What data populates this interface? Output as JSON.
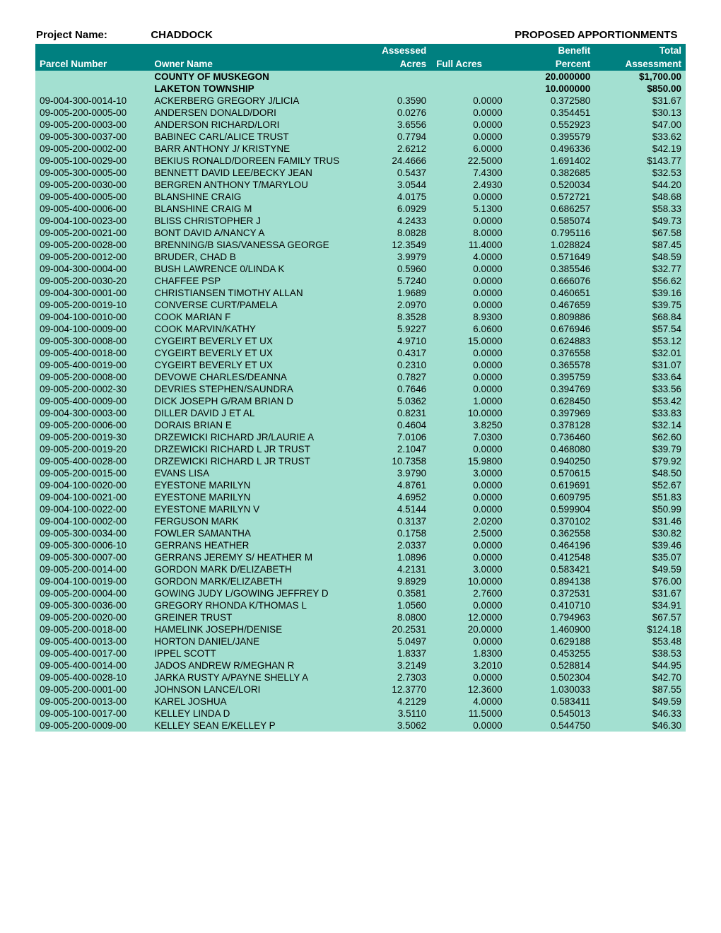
{
  "title": {
    "project_label": "Project Name:",
    "project_name": "CHADDOCK",
    "section_title": "PROPOSED APPORTIONMENTS"
  },
  "header1": {
    "assessed": "Assessed",
    "benefit": "Benefit",
    "total": "Total"
  },
  "header2": {
    "parcel": "Parcel Number",
    "owner": "Owner Name",
    "acres": "Acres",
    "full": "Full Acres",
    "percent": "Percent",
    "assessment": "Assessment"
  },
  "subheads": [
    {
      "name": "COUNTY OF MUSKEGON",
      "pct": "20.000000",
      "amt": "$1,700.00"
    },
    {
      "name": "LAKETON TOWNSHIP",
      "pct": "10.000000",
      "amt": "$850.00"
    }
  ],
  "rows": [
    {
      "p": "09-004-300-0014-10",
      "o": "ACKERBERG GREGORY J/LICIA",
      "a": "0.3590",
      "f": "0.0000",
      "pc": "0.372580",
      "am": "$31.67"
    },
    {
      "p": "09-005-200-0005-00",
      "o": "ANDERSEN DONALD/DORI",
      "a": "0.0276",
      "f": "0.0000",
      "pc": "0.354451",
      "am": "$30.13"
    },
    {
      "p": "09-005-200-0003-00",
      "o": "ANDERSON RICHARD/LORI",
      "a": "3.6556",
      "f": "0.0000",
      "pc": "0.552923",
      "am": "$47.00"
    },
    {
      "p": "09-005-300-0037-00",
      "o": "BABINEC CARL/ALICE TRUST",
      "a": "0.7794",
      "f": "0.0000",
      "pc": "0.395579",
      "am": "$33.62"
    },
    {
      "p": "09-005-200-0002-00",
      "o": "BARR ANTHONY J/ KRISTYNE",
      "a": "2.6212",
      "f": "6.0000",
      "pc": "0.496336",
      "am": "$42.19"
    },
    {
      "p": "09-005-100-0029-00",
      "o": "BEKIUS RONALD/DOREEN FAMILY TRUS",
      "a": "24.4666",
      "f": "22.5000",
      "pc": "1.691402",
      "am": "$143.77"
    },
    {
      "p": "09-005-300-0005-00",
      "o": "BENNETT DAVID LEE/BECKY JEAN",
      "a": "0.5437",
      "f": "7.4300",
      "pc": "0.382685",
      "am": "$32.53"
    },
    {
      "p": "09-005-200-0030-00",
      "o": "BERGREN ANTHONY T/MARYLOU",
      "a": "3.0544",
      "f": "2.4930",
      "pc": "0.520034",
      "am": "$44.20"
    },
    {
      "p": "09-005-400-0005-00",
      "o": "BLANSHINE CRAIG",
      "a": "4.0175",
      "f": "0.0000",
      "pc": "0.572721",
      "am": "$48.68"
    },
    {
      "p": "09-005-400-0006-00",
      "o": "BLANSHINE CRAIG M",
      "a": "6.0929",
      "f": "5.1300",
      "pc": "0.686257",
      "am": "$58.33"
    },
    {
      "p": "09-004-100-0023-00",
      "o": "BLISS CHRISTOPHER J",
      "a": "4.2433",
      "f": "0.0000",
      "pc": "0.585074",
      "am": "$49.73"
    },
    {
      "p": "09-005-200-0021-00",
      "o": "BONT DAVID A/NANCY A",
      "a": "8.0828",
      "f": "8.0000",
      "pc": "0.795116",
      "am": "$67.58"
    },
    {
      "p": "09-005-200-0028-00",
      "o": "BRENNING/B SIAS/VANESSA GEORGE",
      "a": "12.3549",
      "f": "11.4000",
      "pc": "1.028824",
      "am": "$87.45"
    },
    {
      "p": "09-005-200-0012-00",
      "o": "BRUDER, CHAD B",
      "a": "3.9979",
      "f": "4.0000",
      "pc": "0.571649",
      "am": "$48.59"
    },
    {
      "p": "09-004-300-0004-00",
      "o": "BUSH LAWRENCE 0/LINDA K",
      "a": "0.5960",
      "f": "0.0000",
      "pc": "0.385546",
      "am": "$32.77"
    },
    {
      "p": "09-005-200-0030-20",
      "o": "CHAFFEE PSP",
      "a": "5.7240",
      "f": "0.0000",
      "pc": "0.666076",
      "am": "$56.62"
    },
    {
      "p": "09-004-300-0001-00",
      "o": "CHRISTIANSEN TIMOTHY ALLAN",
      "a": "1.9689",
      "f": "0.0000",
      "pc": "0.460651",
      "am": "$39.16"
    },
    {
      "p": "09-005-200-0019-10",
      "o": "CONVERSE CURT/PAMELA",
      "a": "2.0970",
      "f": "0.0000",
      "pc": "0.467659",
      "am": "$39.75"
    },
    {
      "p": "09-004-100-0010-00",
      "o": "COOK MARIAN F",
      "a": "8.3528",
      "f": "8.9300",
      "pc": "0.809886",
      "am": "$68.84"
    },
    {
      "p": "09-004-100-0009-00",
      "o": "COOK MARVIN/KATHY",
      "a": "5.9227",
      "f": "6.0600",
      "pc": "0.676946",
      "am": "$57.54"
    },
    {
      "p": "09-005-300-0008-00",
      "o": "CYGEIRT BEVERLY ET UX",
      "a": "4.9710",
      "f": "15.0000",
      "pc": "0.624883",
      "am": "$53.12"
    },
    {
      "p": "09-005-400-0018-00",
      "o": "CYGEIRT BEVERLY ET UX",
      "a": "0.4317",
      "f": "0.0000",
      "pc": "0.376558",
      "am": "$32.01"
    },
    {
      "p": "09-005-400-0019-00",
      "o": "CYGEIRT BEVERLY ET UX",
      "a": "0.2310",
      "f": "0.0000",
      "pc": "0.365578",
      "am": "$31.07"
    },
    {
      "p": "09-005-200-0008-00",
      "o": "DEVOWE CHARLES/DEANNA",
      "a": "0.7827",
      "f": "0.0000",
      "pc": "0.395759",
      "am": "$33.64"
    },
    {
      "p": "09-005-200-0002-30",
      "o": "DEVRIES STEPHEN/SAUNDRA",
      "a": "0.7646",
      "f": "0.0000",
      "pc": "0.394769",
      "am": "$33.56"
    },
    {
      "p": "09-005-400-0009-00",
      "o": "DICK JOSEPH G/RAM BRIAN D",
      "a": "5.0362",
      "f": "1.0000",
      "pc": "0.628450",
      "am": "$53.42"
    },
    {
      "p": "09-004-300-0003-00",
      "o": "DILLER DAVID J ET AL",
      "a": "0.8231",
      "f": "10.0000",
      "pc": "0.397969",
      "am": "$33.83"
    },
    {
      "p": "09-005-200-0006-00",
      "o": "DORAIS BRIAN E",
      "a": "0.4604",
      "f": "3.8250",
      "pc": "0.378128",
      "am": "$32.14"
    },
    {
      "p": "09-005-200-0019-30",
      "o": "DRZEWICKI RICHARD JR/LAURIE A",
      "a": "7.0106",
      "f": "7.0300",
      "pc": "0.736460",
      "am": "$62.60"
    },
    {
      "p": "09-005-200-0019-20",
      "o": "DRZEWICKI RICHARD L JR TRUST",
      "a": "2.1047",
      "f": "0.0000",
      "pc": "0.468080",
      "am": "$39.79"
    },
    {
      "p": "09-005-400-0028-00",
      "o": "DRZEWICKI RICHARD L JR TRUST",
      "a": "10.7358",
      "f": "15.9800",
      "pc": "0.940250",
      "am": "$79.92"
    },
    {
      "p": "09-005-200-0015-00",
      "o": "EVANS LISA",
      "a": "3.9790",
      "f": "3.0000",
      "pc": "0.570615",
      "am": "$48.50"
    },
    {
      "p": "09-004-100-0020-00",
      "o": "EYESTONE MARILYN",
      "a": "4.8761",
      "f": "0.0000",
      "pc": "0.619691",
      "am": "$52.67"
    },
    {
      "p": "09-004-100-0021-00",
      "o": "EYESTONE MARILYN",
      "a": "4.6952",
      "f": "0.0000",
      "pc": "0.609795",
      "am": "$51.83"
    },
    {
      "p": "09-004-100-0022-00",
      "o": "EYESTONE MARILYN V",
      "a": "4.5144",
      "f": "0.0000",
      "pc": "0.599904",
      "am": "$50.99"
    },
    {
      "p": "09-004-100-0002-00",
      "o": "FERGUSON MARK",
      "a": "0.3137",
      "f": "2.0200",
      "pc": "0.370102",
      "am": "$31.46"
    },
    {
      "p": "09-005-300-0034-00",
      "o": "FOWLER SAMANTHA",
      "a": "0.1758",
      "f": "2.5000",
      "pc": "0.362558",
      "am": "$30.82"
    },
    {
      "p": "09-005-300-0006-10",
      "o": "GERRANS HEATHER",
      "a": "2.0337",
      "f": "0.0000",
      "pc": "0.464196",
      "am": "$39.46"
    },
    {
      "p": "09-005-300-0007-00",
      "o": "GERRANS JEREMY S/ HEATHER M",
      "a": "1.0896",
      "f": "0.0000",
      "pc": "0.412548",
      "am": "$35.07"
    },
    {
      "p": "09-005-200-0014-00",
      "o": "GORDON MARK D/ELIZABETH",
      "a": "4.2131",
      "f": "3.0000",
      "pc": "0.583421",
      "am": "$49.59"
    },
    {
      "p": "09-004-100-0019-00",
      "o": "GORDON MARK/ELIZABETH",
      "a": "9.8929",
      "f": "10.0000",
      "pc": "0.894138",
      "am": "$76.00"
    },
    {
      "p": "09-005-200-0004-00",
      "o": "GOWING JUDY L/GOWING JEFFREY D",
      "a": "0.3581",
      "f": "2.7600",
      "pc": "0.372531",
      "am": "$31.67"
    },
    {
      "p": "09-005-300-0036-00",
      "o": "GREGORY RHONDA K/THOMAS L",
      "a": "1.0560",
      "f": "0.0000",
      "pc": "0.410710",
      "am": "$34.91"
    },
    {
      "p": "09-005-200-0020-00",
      "o": "GREINER TRUST",
      "a": "8.0800",
      "f": "12.0000",
      "pc": "0.794963",
      "am": "$67.57"
    },
    {
      "p": "09-005-200-0018-00",
      "o": "HAMELINK JOSEPH/DENISE",
      "a": "20.2531",
      "f": "20.0000",
      "pc": "1.460900",
      "am": "$124.18"
    },
    {
      "p": "09-005-400-0013-00",
      "o": "HORTON DANIEL/JANE",
      "a": "5.0497",
      "f": "0.0000",
      "pc": "0.629188",
      "am": "$53.48"
    },
    {
      "p": "09-005-400-0017-00",
      "o": "IPPEL SCOTT",
      "a": "1.8337",
      "f": "1.8300",
      "pc": "0.453255",
      "am": "$38.53"
    },
    {
      "p": "09-005-400-0014-00",
      "o": "JADOS ANDREW R/MEGHAN R",
      "a": "3.2149",
      "f": "3.2010",
      "pc": "0.528814",
      "am": "$44.95"
    },
    {
      "p": "09-005-400-0028-10",
      "o": "JARKA RUSTY A/PAYNE SHELLY A",
      "a": "2.7303",
      "f": "0.0000",
      "pc": "0.502304",
      "am": "$42.70"
    },
    {
      "p": "09-005-200-0001-00",
      "o": "JOHNSON LANCE/LORI",
      "a": "12.3770",
      "f": "12.3600",
      "pc": "1.030033",
      "am": "$87.55"
    },
    {
      "p": "09-005-200-0013-00",
      "o": "KAREL JOSHUA",
      "a": "4.2129",
      "f": "4.0000",
      "pc": "0.583411",
      "am": "$49.59"
    },
    {
      "p": "09-005-100-0017-00",
      "o": "KELLEY LINDA D",
      "a": "3.5110",
      "f": "11.5000",
      "pc": "0.545013",
      "am": "$46.33"
    },
    {
      "p": "09-005-200-0009-00",
      "o": "KELLEY SEAN E/KELLEY P",
      "a": "3.5062",
      "f": "0.0000",
      "pc": "0.544750",
      "am": "$46.30"
    }
  ],
  "colors": {
    "header_bg": "#008080",
    "header_fg": "#ffffff",
    "row_bg": "#a3e0d1",
    "page_bg": "#ffffff"
  }
}
